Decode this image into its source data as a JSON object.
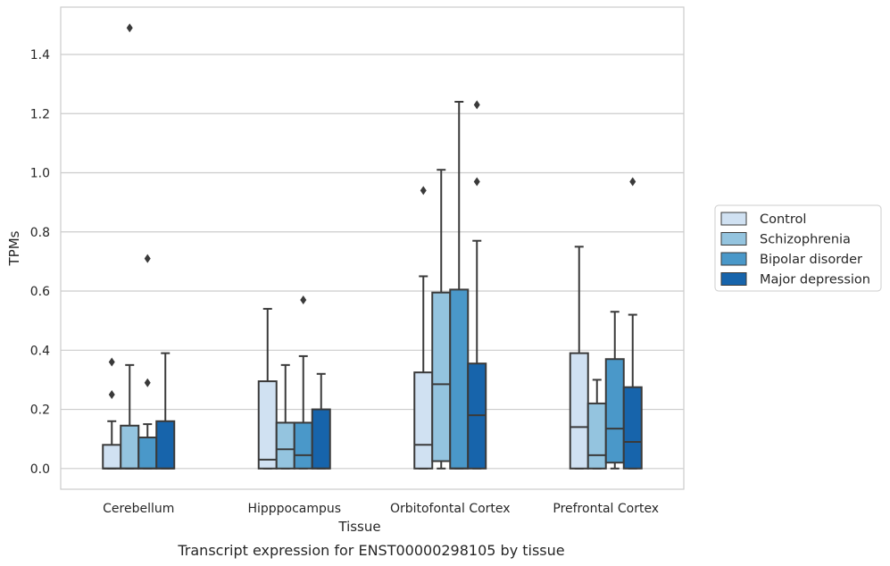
{
  "caption": "Transcript expression for ENST00000298105 by tissue",
  "chart_data": {
    "type": "box",
    "title": "",
    "xlabel": "Tissue",
    "ylabel": "TPMs",
    "ylim": [
      -0.07,
      1.56
    ],
    "yticks": [
      0.0,
      0.2,
      0.4,
      0.6,
      0.8,
      1.0,
      1.2,
      1.4
    ],
    "ytick_labels": [
      "0.0",
      "0.2",
      "0.4",
      "0.6",
      "0.8",
      "1.0",
      "1.2",
      "1.4"
    ],
    "grid": true,
    "legend_position": "right",
    "categories": [
      "Cerebellum",
      "Hipppocampus",
      "Orbitofontal Cortex",
      "Prefrontal Cortex"
    ],
    "series": [
      {
        "name": "Control",
        "color": "#d0e1f2",
        "boxes": [
          {
            "q1": 0.0,
            "median": 0.0,
            "q3": 0.08,
            "whisker_low": 0.0,
            "whisker_high": 0.16,
            "outliers": [
              0.25,
              0.36
            ]
          },
          {
            "q1": 0.0,
            "median": 0.03,
            "q3": 0.295,
            "whisker_low": 0.0,
            "whisker_high": 0.54,
            "outliers": []
          },
          {
            "q1": 0.0,
            "median": 0.08,
            "q3": 0.325,
            "whisker_low": 0.0,
            "whisker_high": 0.65,
            "outliers": [
              0.94
            ]
          },
          {
            "q1": 0.0,
            "median": 0.14,
            "q3": 0.39,
            "whisker_low": 0.0,
            "whisker_high": 0.75,
            "outliers": []
          }
        ]
      },
      {
        "name": "Schizophrenia",
        "color": "#94c4df",
        "boxes": [
          {
            "q1": 0.0,
            "median": 0.0,
            "q3": 0.145,
            "whisker_low": 0.0,
            "whisker_high": 0.35,
            "outliers": [
              1.49
            ]
          },
          {
            "q1": 0.0,
            "median": 0.065,
            "q3": 0.155,
            "whisker_low": 0.0,
            "whisker_high": 0.35,
            "outliers": []
          },
          {
            "q1": 0.025,
            "median": 0.285,
            "q3": 0.595,
            "whisker_low": 0.0,
            "whisker_high": 1.01,
            "outliers": []
          },
          {
            "q1": 0.0,
            "median": 0.045,
            "q3": 0.22,
            "whisker_low": 0.0,
            "whisker_high": 0.3,
            "outliers": []
          }
        ]
      },
      {
        "name": "Bipolar disorder",
        "color": "#4a98c9",
        "boxes": [
          {
            "q1": 0.0,
            "median": 0.0,
            "q3": 0.105,
            "whisker_low": 0.0,
            "whisker_high": 0.15,
            "outliers": [
              0.29,
              0.71
            ]
          },
          {
            "q1": 0.0,
            "median": 0.045,
            "q3": 0.155,
            "whisker_low": 0.0,
            "whisker_high": 0.38,
            "outliers": [
              0.57
            ]
          },
          {
            "q1": 0.0,
            "median": 0.0,
            "q3": 0.605,
            "whisker_low": 0.0,
            "whisker_high": 1.24,
            "outliers": []
          },
          {
            "q1": 0.02,
            "median": 0.135,
            "q3": 0.37,
            "whisker_low": 0.0,
            "whisker_high": 0.53,
            "outliers": []
          }
        ]
      },
      {
        "name": "Major depression",
        "color": "#1764ab",
        "boxes": [
          {
            "q1": 0.0,
            "median": 0.0,
            "q3": 0.16,
            "whisker_low": 0.0,
            "whisker_high": 0.39,
            "outliers": []
          },
          {
            "q1": 0.0,
            "median": 0.0,
            "q3": 0.2,
            "whisker_low": 0.0,
            "whisker_high": 0.32,
            "outliers": []
          },
          {
            "q1": 0.0,
            "median": 0.18,
            "q3": 0.355,
            "whisker_low": 0.0,
            "whisker_high": 0.77,
            "outliers": [
              0.97,
              1.23
            ]
          },
          {
            "q1": 0.0,
            "median": 0.09,
            "q3": 0.275,
            "whisker_low": 0.0,
            "whisker_high": 0.52,
            "outliers": [
              0.97
            ]
          }
        ]
      }
    ]
  }
}
